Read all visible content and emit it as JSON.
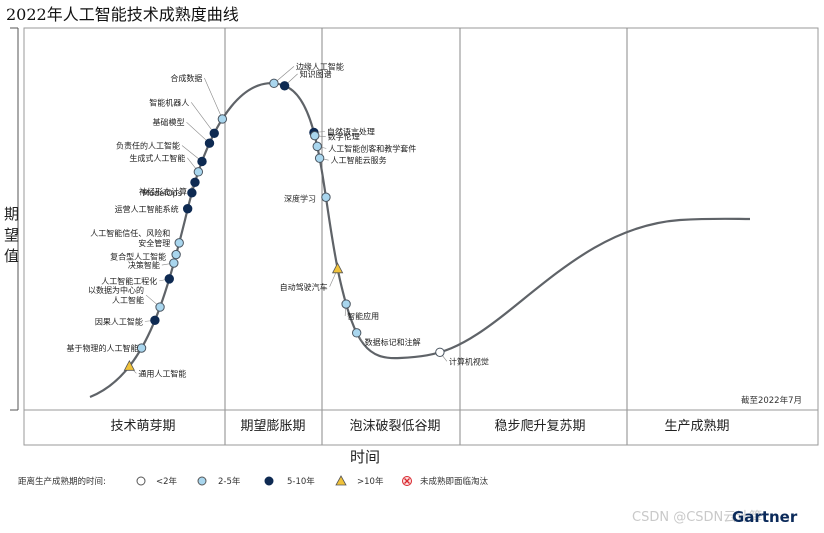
{
  "chart_data": {
    "type": "hype_cycle",
    "title": "2022年人工智能技术成熟度曲线",
    "ylabel": "期望值",
    "xlabel": "时间",
    "as_of": "截至2022年7月",
    "phases": [
      "技术萌芽期",
      "期望膨胀期",
      "泡沫破裂低谷期",
      "稳步爬升复苏期",
      "生产成熟期"
    ],
    "legend": {
      "title": "距离生产成熟期的时间:",
      "items": [
        {
          "key": "lt2",
          "label": "<2年",
          "marker": "circle",
          "color": "#ffffff"
        },
        {
          "key": "2to5",
          "label": "2-5年",
          "marker": "circle",
          "color": "#a9d6ee"
        },
        {
          "key": "5to10",
          "label": "5-10年",
          "marker": "circle",
          "color": "#0e2a52"
        },
        {
          "key": "gt10",
          "label": ">10年",
          "marker": "triangle",
          "color": "#f0c23a"
        },
        {
          "key": "obsolete",
          "label": "未成熟即面临淘汰",
          "marker": "x",
          "color": "#d9282f"
        }
      ]
    },
    "points": [
      {
        "name": "通用人工智能",
        "category": "gt10",
        "t": 0.046
      },
      {
        "name": "基于物理的人工智能",
        "category": "2to5",
        "t": 0.066
      },
      {
        "name": "因果人工智能",
        "category": "5to10",
        "t": 0.094
      },
      {
        "name": "以数据为中心的\n人工智能",
        "category": "2to5",
        "t": 0.107
      },
      {
        "name": "人工智能工程化",
        "category": "5to10",
        "t": 0.134
      },
      {
        "name": "决策智能",
        "category": "2to5",
        "t": 0.149
      },
      {
        "name": "复合型人工智能",
        "category": "2to5",
        "t": 0.157
      },
      {
        "name": "人工智能信任、风险和\n安全管理",
        "category": "2to5",
        "t": 0.168
      },
      {
        "name": "运营人工智能系统",
        "category": "5to10",
        "t": 0.2
      },
      {
        "name": "ModelOps",
        "category": "5to10",
        "t": 0.215
      },
      {
        "name": "神经形态计算",
        "category": "5to10",
        "t": 0.225
      },
      {
        "name": "生成式人工智能",
        "category": "2to5",
        "t": 0.235
      },
      {
        "name": "负责任的人工智能",
        "category": "5to10",
        "t": 0.245
      },
      {
        "name": "基础模型",
        "category": "5to10",
        "t": 0.263
      },
      {
        "name": "智能机器人",
        "category": "5to10",
        "t": 0.273
      },
      {
        "name": "合成数据",
        "category": "2to5",
        "t": 0.288
      },
      {
        "name": "边缘人工智能",
        "category": "2to5",
        "t": 0.348
      },
      {
        "name": "知识图谱",
        "category": "5to10",
        "t": 0.358
      },
      {
        "name": "自然语言处理",
        "category": "5to10",
        "t": 0.41
      },
      {
        "name": "数字伦理",
        "category": "2to5",
        "t": 0.413
      },
      {
        "name": "人工智能创客和教学套件",
        "category": "2to5",
        "t": 0.423
      },
      {
        "name": "人工智能云服务",
        "category": "2to5",
        "t": 0.434
      },
      {
        "name": "深度学习",
        "category": "2to5",
        "t": 0.47
      },
      {
        "name": "自动驾驶汽车",
        "category": "gt10",
        "t": 0.536
      },
      {
        "name": "智能应用",
        "category": "2to5",
        "t": 0.569
      },
      {
        "name": "数据标记和注解",
        "category": "2to5",
        "t": 0.597
      },
      {
        "name": "计算机视觉",
        "category": "lt2",
        "t": 0.683
      }
    ]
  },
  "footer": {
    "watermark": "CSDN @CSDN云计算",
    "brand": "Gartner"
  }
}
